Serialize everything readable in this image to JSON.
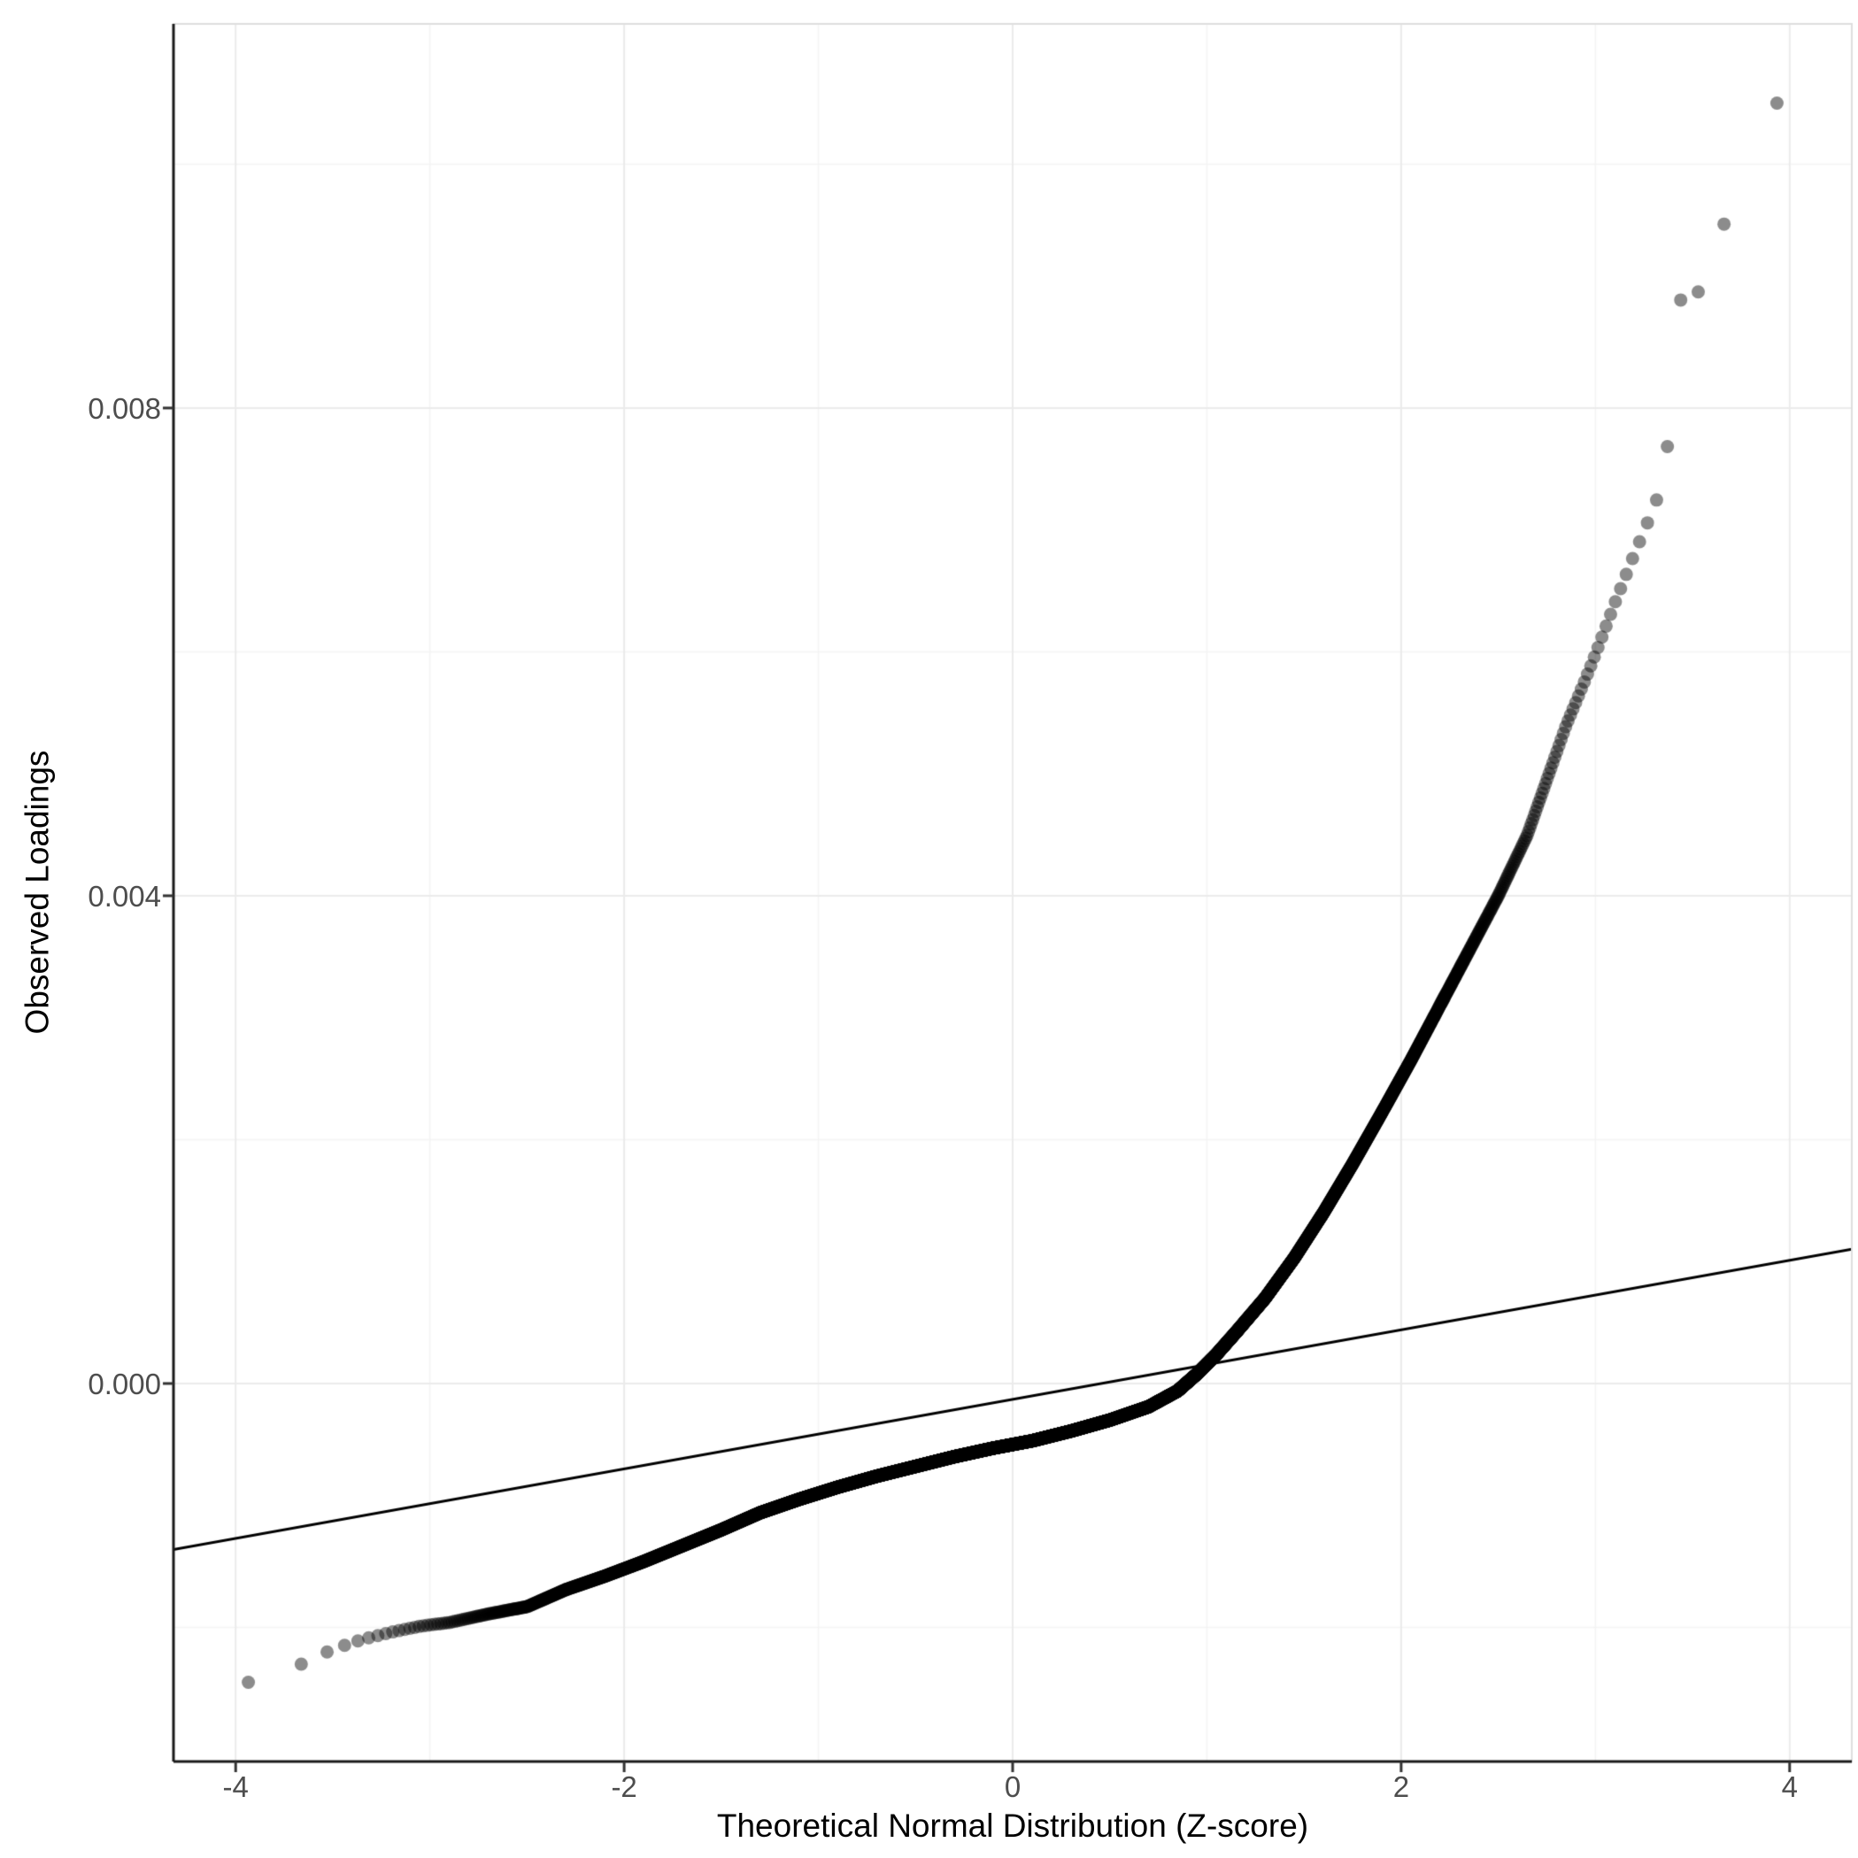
{
  "chart_data": {
    "type": "scatter",
    "variant": "qq-plot",
    "xlabel": "Theoretical Normal Distribution (Z-score)",
    "ylabel": "Observed Loadings",
    "x_ticks": {
      "values": [
        -4,
        -2,
        0,
        2,
        4
      ],
      "labels": [
        "-4",
        "-2",
        "0",
        "2",
        "4"
      ]
    },
    "y_ticks": {
      "values": [
        0,
        0.004,
        0.008
      ],
      "labels": [
        "0.000",
        "0.004",
        "0.008"
      ]
    },
    "x_minor_gridlines": [
      -3,
      -1,
      1,
      3
    ],
    "y_minor_gridlines": [
      -0.002,
      0.002,
      0.006,
      0.01
    ],
    "x_domain": [
      -4.32,
      4.32
    ],
    "y_domain": [
      -0.0031,
      0.01115
    ],
    "n_points": 12000,
    "quantile_curve": [
      [
        -3.93,
        -0.00245
      ],
      [
        -3.66,
        -0.0023
      ],
      [
        -3.5,
        -0.00218
      ],
      [
        -3.35,
        -0.0021
      ],
      [
        -3.2,
        -0.00204
      ],
      [
        -3.05,
        -0.00199
      ],
      [
        -2.9,
        -0.00196
      ],
      [
        -2.7,
        -0.00189
      ],
      [
        -2.5,
        -0.00183
      ],
      [
        -2.3,
        -0.00169
      ],
      [
        -2.1,
        -0.00158
      ],
      [
        -1.9,
        -0.00146
      ],
      [
        -1.7,
        -0.00133
      ],
      [
        -1.5,
        -0.0012
      ],
      [
        -1.3,
        -0.00106
      ],
      [
        -1.1,
        -0.00095
      ],
      [
        -0.9,
        -0.00085
      ],
      [
        -0.7,
        -0.00076
      ],
      [
        -0.5,
        -0.00068
      ],
      [
        -0.3,
        -0.0006
      ],
      [
        -0.1,
        -0.00053
      ],
      [
        0.1,
        -0.00047
      ],
      [
        0.3,
        -0.00039
      ],
      [
        0.5,
        -0.0003
      ],
      [
        0.7,
        -0.00019
      ],
      [
        0.85,
        -6e-05
      ],
      [
        0.95,
        8e-05
      ],
      [
        1.05,
        0.00024
      ],
      [
        1.15,
        0.00042
      ],
      [
        1.3,
        0.0007
      ],
      [
        1.45,
        0.00103
      ],
      [
        1.6,
        0.0014
      ],
      [
        1.75,
        0.0018
      ],
      [
        1.9,
        0.00222
      ],
      [
        2.05,
        0.00265
      ],
      [
        2.2,
        0.0031
      ],
      [
        2.35,
        0.00355
      ],
      [
        2.5,
        0.004
      ],
      [
        2.65,
        0.0045
      ],
      [
        2.75,
        0.00495
      ],
      [
        2.85,
        0.0054
      ],
      [
        2.95,
        0.00578
      ],
      [
        3.0,
        0.00598
      ],
      [
        3.1,
        0.0064
      ],
      [
        3.2,
        0.0068
      ],
      [
        3.3,
        0.00718
      ],
      [
        3.35,
        0.0074
      ],
      [
        3.39,
        0.00795
      ],
      [
        3.44,
        0.0089
      ],
      [
        3.56,
        0.00897
      ],
      [
        3.66,
        0.0095
      ],
      [
        3.93,
        0.0105
      ]
    ],
    "reference_line": {
      "slope": 0.000285,
      "intercept": -0.00013
    },
    "grid": true,
    "legend": null,
    "style": {
      "point_color": "#000000",
      "point_alpha": 0.45,
      "point_radius": 7.5,
      "line_color": "#000000",
      "line_width": 3,
      "grid_major_color": "#ebebeb",
      "grid_minor_color": "#f4f4f4",
      "panel_border_color": "#dedede",
      "axis_line_color": "#1a1a1a",
      "tick_mark_color": "#333333",
      "tick_label_color": "#4d4d4d",
      "axis_title_color": "#000000",
      "panel_background": "#ffffff"
    }
  }
}
